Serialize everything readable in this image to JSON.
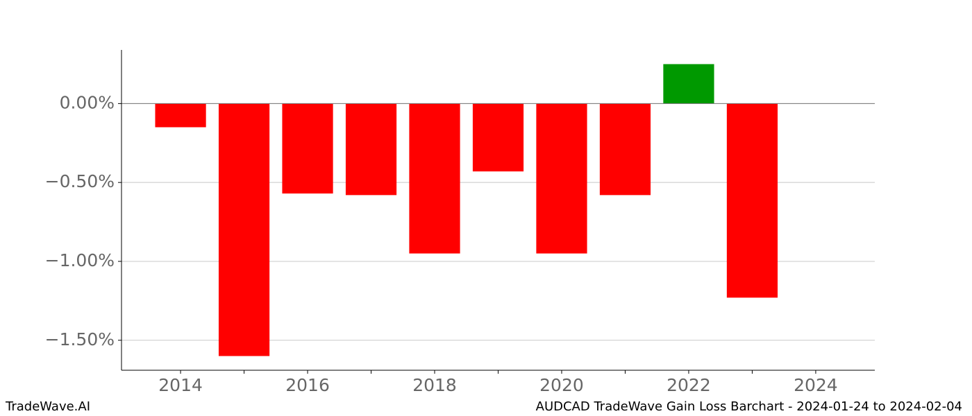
{
  "chart_data": {
    "type": "bar",
    "x": [
      2014,
      2015,
      2016,
      2017,
      2018,
      2019,
      2020,
      2021,
      2022,
      2023
    ],
    "values": [
      -0.15,
      -1.6,
      -0.57,
      -0.58,
      -0.95,
      -0.43,
      -0.95,
      -0.58,
      0.25,
      -1.23
    ],
    "colors": [
      "#ff0000",
      "#ff0000",
      "#ff0000",
      "#ff0000",
      "#ff0000",
      "#ff0000",
      "#ff0000",
      "#ff0000",
      "#009900",
      "#ff0000"
    ],
    "bar_width": 0.8,
    "xlim": [
      2013.07,
      2024.93
    ],
    "xticks": [
      2014,
      2016,
      2018,
      2020,
      2022,
      2024
    ],
    "xminorticks": [
      2015,
      2017,
      2019,
      2021,
      2023
    ],
    "ylim": [
      -1.69,
      0.34
    ],
    "yticks": [
      {
        "value": 0,
        "label": "0.00%"
      },
      {
        "value": -0.5,
        "label": "−0.50%"
      },
      {
        "value": -1,
        "label": "−1.00%"
      },
      {
        "value": -1.5,
        "label": "−1.50%"
      }
    ],
    "grid": true,
    "footer_left": "TradeWave.AI",
    "footer_right": "AUDCAD TradeWave Gain Loss Barchart - 2024-01-24 to 2024-02-04"
  }
}
